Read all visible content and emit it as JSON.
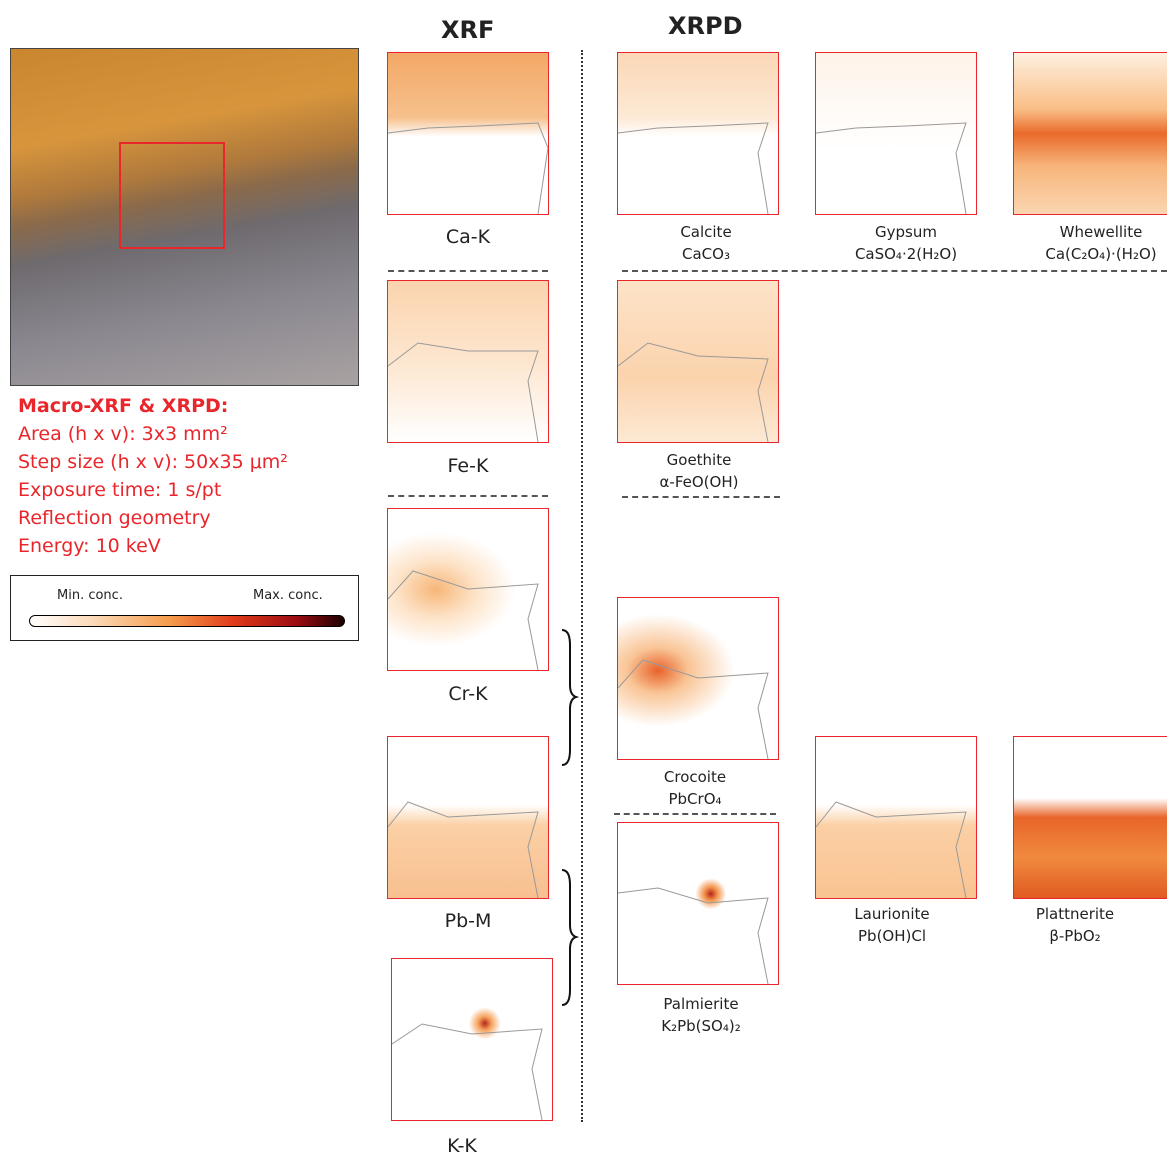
{
  "header": {
    "xrf": "XRF",
    "xrpd": "XRPD"
  },
  "info": {
    "title": "Macro-XRF & XRPD:",
    "lines": [
      "Area (h x v): 3x3 mm²",
      "Step size (h x v): 50x35 μm²",
      "Exposure time: 1 s/pt",
      "Reflection geometry",
      "Energy: 10 keV"
    ]
  },
  "legend": {
    "min": "Min. conc.",
    "max": "Max. conc."
  },
  "xrf_maps": [
    {
      "label": "Ca-K"
    },
    {
      "label": "Fe-K"
    },
    {
      "label": "Cr-K"
    },
    {
      "label": "Pb-M"
    },
    {
      "label": "K-K"
    }
  ],
  "xrpd_maps": [
    {
      "name": "Calcite",
      "formula": "CaCO₃"
    },
    {
      "name": "Gypsum",
      "formula": "CaSO₄·2(H₂O)"
    },
    {
      "name": "Whewellite",
      "formula": "Ca(C₂O₄)·(H₂O)"
    },
    {
      "name": "Goethite",
      "formula": "α-FeO(OH)"
    },
    {
      "name": "Crocoite",
      "formula": "PbCrO₄"
    },
    {
      "name": "Palmierite",
      "formula": "K₂Pb(SO₄)₂"
    },
    {
      "name": "Laurionite",
      "formula": "Pb(OH)Cl"
    },
    {
      "name": "Plattnerite",
      "formula": "β-PbO₂"
    }
  ]
}
